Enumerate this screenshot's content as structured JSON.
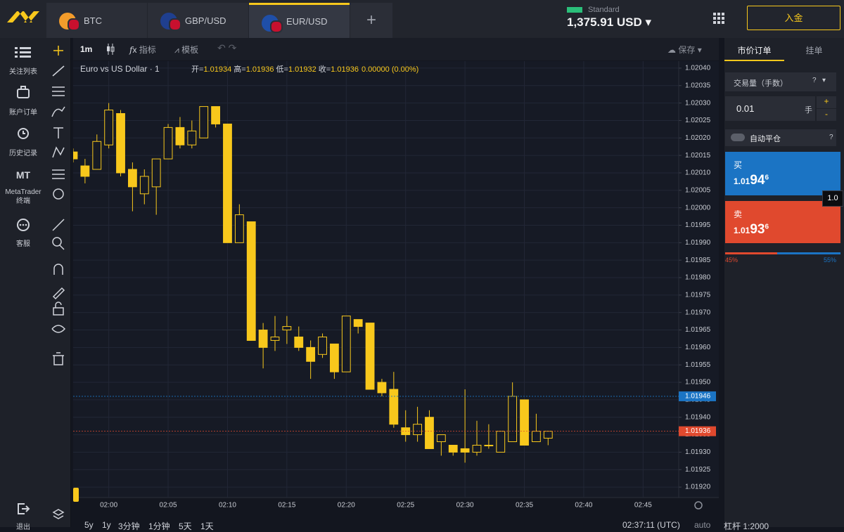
{
  "header": {
    "tabs": [
      "BTC",
      "GBP/USD",
      "EUR/USD"
    ],
    "account_type": "Standard",
    "balance": "1,375.91 USD",
    "deposit": "入金"
  },
  "sidebar": {
    "items": [
      "关注列表",
      "账户订单",
      "历史记录",
      "MetaTrader 终端",
      "客服",
      "退出"
    ],
    "mt_badge": "MT"
  },
  "toolbar": {
    "interval": "1m",
    "indicators": "指标",
    "templates": "模板",
    "save": "保存"
  },
  "chart_data": {
    "type": "candlestick",
    "title": "Euro vs US Dollar · 1",
    "ohlc_legend": [
      {
        "label": "开=",
        "value": "1.01934"
      },
      {
        "label": "高=",
        "value": "1.01936"
      },
      {
        "label": "低=",
        "value": "1.01932"
      },
      {
        "label": "收=",
        "value": "1.01936"
      }
    ],
    "change": "0.00000 (0.00%)",
    "x": [
      "01:57",
      "01:58",
      "01:59",
      "02:00",
      "02:01",
      "02:02",
      "02:03",
      "02:04",
      "02:05",
      "02:06",
      "02:07",
      "02:08",
      "02:09",
      "02:10",
      "02:11",
      "02:12",
      "02:13",
      "02:14",
      "02:15",
      "02:16",
      "02:17",
      "02:18",
      "02:19",
      "02:20",
      "02:21",
      "02:22",
      "02:23",
      "02:24",
      "02:25",
      "02:26",
      "02:27",
      "02:28",
      "02:29",
      "02:30",
      "02:31",
      "02:32",
      "02:33",
      "02:34",
      "02:35",
      "02:36",
      "02:37"
    ],
    "open": [
      1.02016,
      1.02012,
      1.02011,
      1.02018,
      1.02027,
      1.02011,
      1.02004,
      1.02006,
      1.02014,
      1.02023,
      1.02018,
      1.0202,
      1.02029,
      1.02024,
      1.0199,
      1.01996,
      1.01965,
      1.01962,
      1.01965,
      1.01963,
      1.0196,
      1.01958,
      1.01961,
      1.01953,
      1.01968,
      1.01967,
      1.0195,
      1.01948,
      1.01937,
      1.01935,
      1.0194,
      1.01933,
      1.01932,
      1.01931,
      1.0193,
      1.01932,
      1.0193,
      1.01933,
      1.01945,
      1.01933,
      1.01934
    ],
    "high": [
      1.02017,
      1.02014,
      1.02021,
      1.0203,
      1.02028,
      1.02013,
      1.02011,
      1.02014,
      1.02024,
      1.02026,
      1.02025,
      1.02029,
      1.02029,
      1.02024,
      1.02001,
      1.01996,
      1.01967,
      1.01969,
      1.01969,
      1.01966,
      1.01962,
      1.01964,
      1.01961,
      1.01969,
      1.01968,
      1.01967,
      1.01951,
      1.01953,
      1.01942,
      1.01943,
      1.01942,
      1.01935,
      1.01932,
      1.01948,
      1.01939,
      1.01938,
      1.01936,
      1.0195,
      1.01945,
      1.01941,
      1.01936
    ],
    "low": [
      1.02013,
      1.02007,
      1.02011,
      1.02017,
      1.02009,
      1.01999,
      1.02001,
      1.01998,
      1.02014,
      1.02017,
      1.02017,
      1.0202,
      1.02023,
      1.0199,
      1.0199,
      1.01962,
      1.01954,
      1.01959,
      1.01961,
      1.01959,
      1.01951,
      1.01957,
      1.01951,
      1.01953,
      1.01964,
      1.01948,
      1.01946,
      1.01937,
      1.01933,
      1.01933,
      1.01931,
      1.01929,
      1.01929,
      1.01927,
      1.01929,
      1.01931,
      1.0193,
      1.01933,
      1.01932,
      1.01933,
      1.01932
    ],
    "close": [
      1.02014,
      1.02009,
      1.02019,
      1.02028,
      1.0201,
      1.02006,
      1.02009,
      1.02014,
      1.02023,
      1.02018,
      1.02022,
      1.02029,
      1.02024,
      1.0199,
      1.01998,
      1.01962,
      1.0196,
      1.01963,
      1.01966,
      1.0196,
      1.01956,
      1.01963,
      1.01953,
      1.01969,
      1.01966,
      1.01948,
      1.01947,
      1.01938,
      1.01935,
      1.01938,
      1.01931,
      1.01935,
      1.0193,
      1.0193,
      1.01932,
      1.01932,
      1.01936,
      1.01946,
      1.01932,
      1.01936,
      1.01936
    ],
    "color": "#f8c81c",
    "hollow_up": true,
    "xlim": [
      "01:57",
      "02:48"
    ],
    "xticks": [
      "02:00",
      "02:05",
      "02:10",
      "02:15",
      "02:20",
      "02:25",
      "02:30",
      "02:35",
      "02:40",
      "02:45"
    ],
    "ylim": [
      1.01917,
      1.02042
    ],
    "yticks": [
      {
        "value": 1.0192,
        "label": "1.01920"
      },
      1.01925,
      {
        "value": 1.0193,
        "label": "1.01930"
      },
      1.01935,
      {
        "value": 1.0194,
        "label": "1.01940"
      },
      1.01945,
      {
        "value": 1.0195,
        "label": "1.01950"
      },
      1.01955,
      {
        "value": 1.0196,
        "label": "1.01960"
      },
      1.01965,
      {
        "value": 1.0197,
        "label": "1.01970"
      },
      1.01975,
      {
        "value": 1.0198,
        "label": "1.01980"
      },
      1.01985,
      {
        "value": 1.0199,
        "label": "1.01990"
      },
      1.01995,
      {
        "value": 1.02,
        "label": "1.02000"
      },
      1.02005,
      {
        "value": 1.0201,
        "label": "1.02010"
      },
      1.02015,
      {
        "value": 1.0202,
        "label": "1.02020"
      },
      1.02025,
      {
        "value": 1.0203,
        "label": "1.02030"
      },
      1.02035,
      {
        "value": 1.0204,
        "label": "1.02040"
      }
    ],
    "grid": true,
    "price_lines": [
      {
        "value": 1.01946,
        "color": "#1b74c4"
      },
      {
        "value": 1.01936,
        "color": "#e0492e"
      }
    ]
  },
  "order_panel": {
    "tabs": [
      "市价订单",
      "挂单"
    ],
    "volume_label": "交易量（手数）",
    "help": "?",
    "volume": "0.01",
    "unit": "手",
    "plus": "+",
    "minus": "-",
    "auto_close": "自动平仓",
    "buy": {
      "label": "买",
      "head": "1.01",
      "big": "94",
      "pip": "6"
    },
    "sell": {
      "label": "卖",
      "head": "1.01",
      "big": "93",
      "pip": "6"
    },
    "spread": "1.0",
    "sentiment": {
      "sell": {
        "value": 45,
        "label": "45%"
      },
      "buy": {
        "value": 55,
        "label": "55%"
      }
    }
  },
  "footer": {
    "ranges": [
      "5y",
      "1y",
      "3分钟",
      "1分钟",
      "5天",
      "1天"
    ],
    "time": "02:37:11 (UTC)",
    "scale": "auto",
    "leverage": "杠杆 1:2000"
  }
}
